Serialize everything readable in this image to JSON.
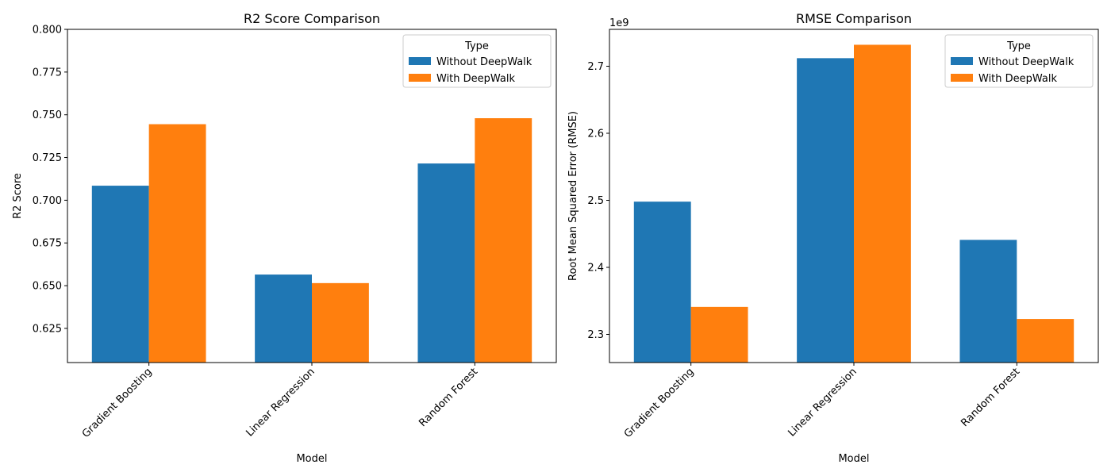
{
  "chart_data": [
    {
      "type": "bar",
      "title": "R2 Score Comparison",
      "xlabel": "Model",
      "ylabel": "R2 Score",
      "categories": [
        "Gradient Boosting",
        "Linear Regression",
        "Random Forest"
      ],
      "series": [
        {
          "name": "Without DeepWalk",
          "values": [
            0.7085,
            0.6565,
            0.7215
          ]
        },
        {
          "name": "With DeepWalk",
          "values": [
            0.7445,
            0.6515,
            0.748
          ]
        }
      ],
      "ylim": [
        0.605,
        0.8
      ],
      "yticks": [
        0.625,
        0.65,
        0.675,
        0.7,
        0.725,
        0.75,
        0.775,
        0.8
      ],
      "ytick_labels": [
        "0.625",
        "0.650",
        "0.675",
        "0.700",
        "0.725",
        "0.750",
        "0.775",
        "0.800"
      ],
      "offset_text": "",
      "legend": {
        "title": "Type",
        "placement": "top-right"
      },
      "grid": false
    },
    {
      "type": "bar",
      "title": "RMSE Comparison",
      "xlabel": "Model",
      "ylabel": "Root Mean Squared Error (RMSE)",
      "categories": [
        "Gradient Boosting",
        "Linear Regression",
        "Random Forest"
      ],
      "series": [
        {
          "name": "Without DeepWalk",
          "values": [
            2498000000,
            2712000000,
            2441000000
          ]
        },
        {
          "name": "With DeepWalk",
          "values": [
            2341000000,
            2732000000,
            2323000000
          ]
        }
      ],
      "ylim": [
        2258000000,
        2755000000
      ],
      "yticks": [
        2300000000,
        2400000000,
        2500000000,
        2600000000,
        2700000000
      ],
      "ytick_labels": [
        "2.3",
        "2.4",
        "2.5",
        "2.6",
        "2.7"
      ],
      "offset_text": "1e9",
      "legend": {
        "title": "Type",
        "placement": "top-right"
      },
      "grid": false
    }
  ],
  "colors": {
    "Without DeepWalk": "#1f77b4",
    "With DeepWalk": "#ff7f0e"
  }
}
